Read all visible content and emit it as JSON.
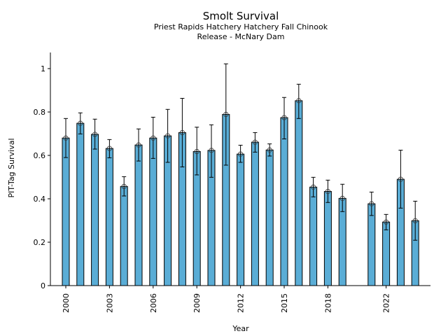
{
  "chart_data": {
    "type": "bar",
    "title": "Smolt Survival",
    "subtitle_lines": [
      "Priest Rapids Hatchery Hatchery Fall Chinook",
      "Release - McNary Dam"
    ],
    "xlabel": "Year",
    "ylabel": "PIT-Tag Survival",
    "ylim": [
      0,
      1.07
    ],
    "xlim": [
      1999.5,
      2024.75
    ],
    "yticks": [
      0,
      0.2,
      0.4,
      0.6,
      0.8,
      1
    ],
    "ytick_labels": [
      "0",
      "0.2",
      "0.4",
      "0.6",
      "0.8",
      "1"
    ],
    "xticks": [
      2000,
      2003,
      2006,
      2009,
      2012,
      2015,
      2018,
      2022
    ],
    "xtick_labels": [
      "2000",
      "2003",
      "2006",
      "2009",
      "2012",
      "2015",
      "2018",
      "2022"
    ],
    "grid": false,
    "bar_color": "#5aadd6",
    "edge_color": "#000000",
    "points": [
      {
        "year": 2000,
        "value": 0.68,
        "lower": 0.59,
        "upper": 0.77
      },
      {
        "year": 2001,
        "value": 0.748,
        "lower": 0.699,
        "upper": 0.796
      },
      {
        "year": 2002,
        "value": 0.697,
        "lower": 0.629,
        "upper": 0.767
      },
      {
        "year": 2003,
        "value": 0.632,
        "lower": 0.589,
        "upper": 0.673
      },
      {
        "year": 2004,
        "value": 0.457,
        "lower": 0.413,
        "upper": 0.502
      },
      {
        "year": 2005,
        "value": 0.648,
        "lower": 0.574,
        "upper": 0.722
      },
      {
        "year": 2006,
        "value": 0.68,
        "lower": 0.586,
        "upper": 0.776
      },
      {
        "year": 2007,
        "value": 0.69,
        "lower": 0.568,
        "upper": 0.812
      },
      {
        "year": 2008,
        "value": 0.705,
        "lower": 0.547,
        "upper": 0.863
      },
      {
        "year": 2009,
        "value": 0.618,
        "lower": 0.51,
        "upper": 0.73
      },
      {
        "year": 2010,
        "value": 0.623,
        "lower": 0.499,
        "upper": 0.741
      },
      {
        "year": 2011,
        "value": 0.789,
        "lower": 0.555,
        "upper": 1.022
      },
      {
        "year": 2012,
        "value": 0.606,
        "lower": 0.568,
        "upper": 0.647
      },
      {
        "year": 2013,
        "value": 0.661,
        "lower": 0.615,
        "upper": 0.705
      },
      {
        "year": 2014,
        "value": 0.625,
        "lower": 0.597,
        "upper": 0.653
      },
      {
        "year": 2015,
        "value": 0.774,
        "lower": 0.676,
        "upper": 0.867
      },
      {
        "year": 2016,
        "value": 0.852,
        "lower": 0.77,
        "upper": 0.928
      },
      {
        "year": 2017,
        "value": 0.454,
        "lower": 0.409,
        "upper": 0.499
      },
      {
        "year": 2018,
        "value": 0.434,
        "lower": 0.383,
        "upper": 0.486
      },
      {
        "year": 2019,
        "value": 0.402,
        "lower": 0.341,
        "upper": 0.467
      },
      {
        "year": 2021,
        "value": 0.377,
        "lower": 0.323,
        "upper": 0.431
      },
      {
        "year": 2022,
        "value": 0.293,
        "lower": 0.257,
        "upper": 0.328
      },
      {
        "year": 2023,
        "value": 0.49,
        "lower": 0.357,
        "upper": 0.624
      },
      {
        "year": 2024,
        "value": 0.299,
        "lower": 0.209,
        "upper": 0.389
      }
    ]
  }
}
